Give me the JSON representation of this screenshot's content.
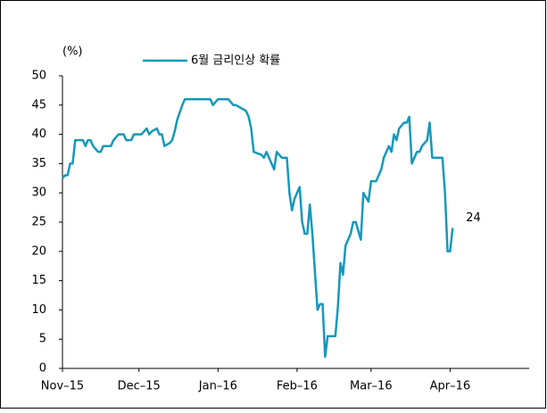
{
  "chart_data": {
    "type": "line",
    "y_label": "(%)",
    "xlim": [
      0,
      183
    ],
    "xticks": [
      {
        "value": 0,
        "label": "Nov–15"
      },
      {
        "value": 30,
        "label": "Dec–15"
      },
      {
        "value": 61,
        "label": "Jan–16"
      },
      {
        "value": 92,
        "label": "Feb–16"
      },
      {
        "value": 121,
        "label": "Mar–16"
      },
      {
        "value": 152,
        "label": "Apr–16"
      }
    ],
    "ylim": [
      0,
      50
    ],
    "yticks": [
      0,
      5,
      10,
      15,
      20,
      25,
      30,
      35,
      40,
      45,
      50
    ],
    "x": [
      0,
      1,
      2,
      3,
      4,
      5,
      8,
      9,
      10,
      11,
      12,
      14,
      15,
      16,
      19,
      20,
      22,
      23,
      24,
      25,
      27,
      28,
      30,
      31,
      33,
      34,
      35,
      37,
      38,
      39,
      40,
      42,
      43,
      44,
      45,
      47,
      48,
      58,
      59,
      61,
      65,
      67,
      68,
      70,
      72,
      73,
      74,
      75,
      78,
      79,
      80,
      82,
      83,
      84,
      86,
      88,
      89,
      90,
      91,
      93,
      94,
      95,
      96,
      97,
      98,
      100,
      101,
      102,
      103,
      104,
      107,
      108,
      109,
      110,
      111,
      113,
      114,
      115,
      117,
      118,
      120,
      121,
      123,
      125,
      126,
      128,
      129,
      130,
      131,
      132,
      134,
      135,
      136,
      137,
      139,
      140,
      141,
      143,
      144,
      145,
      149,
      150,
      151,
      152,
      153
    ],
    "series": [
      {
        "name": "6월 금리인상 확률",
        "color": "#1598bb",
        "values": [
          32.5,
          33,
          33,
          35,
          35,
          39,
          39,
          38,
          39,
          39,
          38,
          37,
          37,
          38,
          38,
          39,
          40,
          40,
          40,
          39,
          39,
          40,
          40,
          40,
          41,
          40,
          40.5,
          41,
          40,
          40,
          38,
          38.5,
          39,
          40.5,
          42.5,
          45,
          46,
          46,
          45,
          46,
          46,
          45,
          45,
          44.5,
          44,
          43,
          41,
          37,
          36.5,
          36,
          37,
          35,
          34,
          37,
          36,
          36,
          30,
          27,
          29,
          31,
          25,
          23,
          23,
          28,
          23,
          10,
          11,
          11,
          2,
          5.5,
          5.5,
          10.5,
          18,
          16,
          21,
          23,
          25,
          25,
          22,
          30,
          28.5,
          32,
          32,
          34,
          36,
          38,
          37,
          40,
          39,
          41,
          42,
          42,
          43,
          35,
          37,
          37,
          38,
          39,
          42,
          36,
          36,
          30,
          20,
          20,
          24
        ]
      }
    ]
  }
}
